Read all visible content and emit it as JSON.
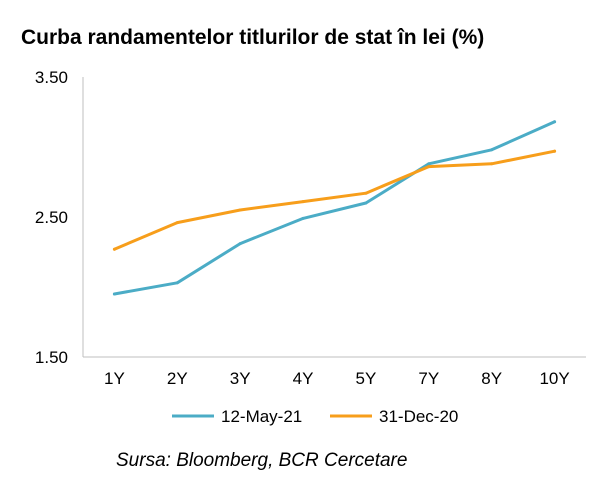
{
  "chart_data": {
    "type": "line",
    "title": "Curba randamentelor titlurilor de stat în lei (%)",
    "categories": [
      "1Y",
      "2Y",
      "3Y",
      "4Y",
      "5Y",
      "7Y",
      "8Y",
      "10Y"
    ],
    "y_ticks": [
      "3.50",
      "2.50",
      "1.50"
    ],
    "ylim": [
      1.5,
      3.5
    ],
    "grid": false,
    "legend_position": "bottom",
    "series": [
      {
        "name": "12-May-21",
        "color": "#4BACC6",
        "values": [
          1.95,
          2.03,
          2.31,
          2.49,
          2.6,
          2.88,
          2.98,
          3.18
        ]
      },
      {
        "name": "31-Dec-20",
        "color": "#F79E1B",
        "values": [
          2.27,
          2.46,
          2.55,
          2.61,
          2.67,
          2.86,
          2.88,
          2.97
        ]
      }
    ],
    "source": "Sursa: Bloomberg, BCR Cercetare"
  }
}
